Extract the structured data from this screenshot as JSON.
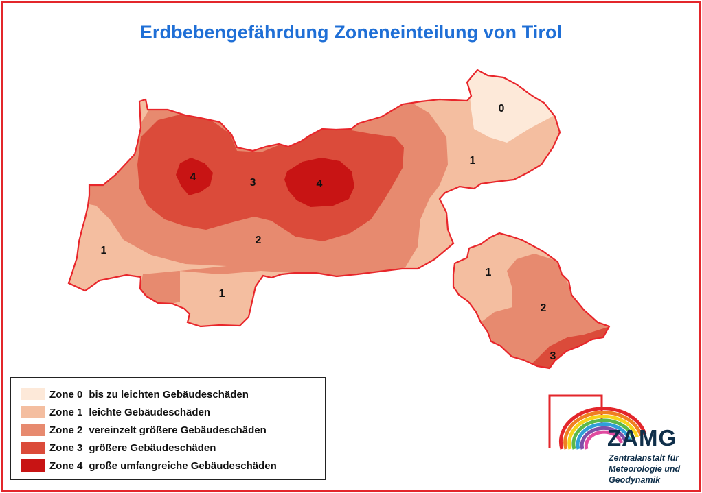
{
  "title": "Erdbebengefährdung Zoneneinteilung von Tirol",
  "colors": {
    "frame": "#e3262b",
    "title": "#1f6fd6",
    "border": "#e8262b",
    "zone0": "#fde9d9",
    "zone1": "#f4bea0",
    "zone2": "#e78a6f",
    "zone3": "#db4b3a",
    "zone4": "#c81414",
    "logo_text": "#0f2f4a"
  },
  "map_labels": [
    {
      "zone": "0",
      "region": "nordost"
    },
    {
      "zone": "1",
      "region": "ost"
    },
    {
      "zone": "4",
      "region": "arlberg"
    },
    {
      "zone": "3",
      "region": "oberland"
    },
    {
      "zone": "4",
      "region": "innsbruck"
    },
    {
      "zone": "2",
      "region": "mitte"
    },
    {
      "zone": "1",
      "region": "west"
    },
    {
      "zone": "1",
      "region": "sued"
    },
    {
      "zone": "1",
      "region": "osttirol-nord"
    },
    {
      "zone": "2",
      "region": "osttirol"
    },
    {
      "zone": "3",
      "region": "osttirol-sued"
    }
  ],
  "legend": [
    {
      "zone": "Zone 0",
      "desc": "bis zu leichten Gebäudeschäden",
      "color": "#fde9d9"
    },
    {
      "zone": "Zone 1",
      "desc": "leichte Gebäudeschäden",
      "color": "#f4bea0"
    },
    {
      "zone": "Zone 2",
      "desc": "vereinzelt größere Gebäudeschäden",
      "color": "#e78a6f"
    },
    {
      "zone": "Zone 3",
      "desc": "größere Gebäudeschäden",
      "color": "#db4b3a"
    },
    {
      "zone": "Zone 4",
      "desc": "große umfangreiche Gebäudeschäden",
      "color": "#c81414"
    }
  ],
  "logo": {
    "name": "ZAMG",
    "line1": "Zentralanstalt für",
    "line2": "Meteorologie und",
    "line3": "Geodynamik",
    "rainbow": [
      "#e3262b",
      "#f07f22",
      "#f6d31b",
      "#5cb84a",
      "#2f9fd8",
      "#7e4fa8",
      "#e04aa0"
    ]
  }
}
